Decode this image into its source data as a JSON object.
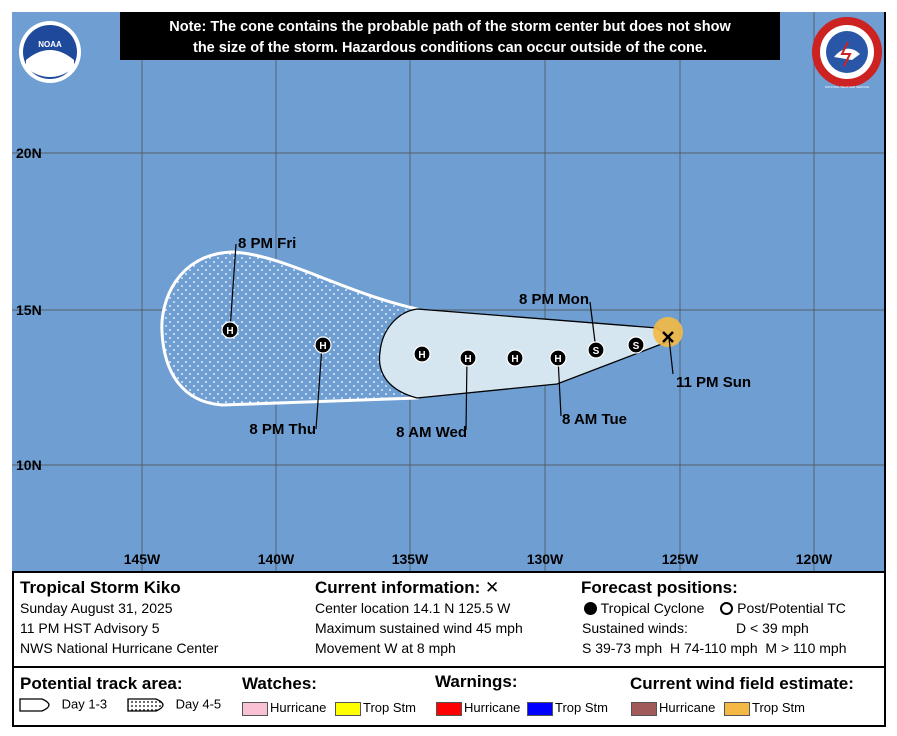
{
  "note": {
    "line1": "Note: The cone contains the probable path of the storm center but does not show",
    "line2": "the size of the storm. Hazardous conditions can occur outside of the cone."
  },
  "logos": {
    "left": "NOAA",
    "right": "NATIONAL WEATHER SERVICE"
  },
  "lat_labels": [
    "20N",
    "15N",
    "10N"
  ],
  "lon_labels": [
    "145W",
    "140W",
    "135W",
    "130W",
    "125W",
    "120W"
  ],
  "positions": [
    {
      "type": "H",
      "label": "8 PM Fri"
    },
    {
      "type": "H",
      "label": "8 PM Thu"
    },
    {
      "type": "H",
      "label": ""
    },
    {
      "type": "H",
      "label": "8 AM Wed"
    },
    {
      "type": "H",
      "label": ""
    },
    {
      "type": "H",
      "label": "8 AM Tue"
    },
    {
      "type": "S",
      "label": "8 PM Mon"
    },
    {
      "type": "S",
      "label": ""
    }
  ],
  "current_label": "11 PM Sun",
  "info": {
    "storm_name": "Tropical Storm Kiko",
    "date": "Sunday August 31, 2025",
    "advisory": "11 PM HST Advisory 5",
    "center": "NWS National Hurricane Center",
    "current_title": "Current information:",
    "current_mark": "✕",
    "location": "Center location 14.1 N 125.5 W",
    "wind": "Maximum sustained wind 45 mph",
    "movement": "Movement W at 8 mph",
    "forecast_title": "Forecast positions:",
    "tc_label": "Tropical Cyclone",
    "post_label": "Post/Potential TC",
    "sustained_label": "Sustained winds:",
    "d_label": "D < 39 mph",
    "s_label": "S 39-73 mph",
    "h_label": "H 74-110 mph",
    "m_label": "M > 110 mph"
  },
  "legend": {
    "track_title": "Potential track area:",
    "day13": "Day 1-3",
    "day45": "Day 4-5",
    "watches_title": "Watches:",
    "warnings_title": "Warnings:",
    "wind_title": "Current wind field estimate:",
    "hurricane": "Hurricane",
    "trop_stm": "Trop Stm"
  },
  "colors": {
    "ocean": "#6F9ED2",
    "cone": "#D5E6F1",
    "wind_ts": "#F4B944",
    "watch_hurricane": "#F8C2D4",
    "watch_ts": "#FFFF00",
    "warn_hurricane": "#FF0000",
    "warn_ts": "#0000FF",
    "wind_hurricane": "#A05A5A",
    "wind_ts_legend": "#F4B944"
  }
}
